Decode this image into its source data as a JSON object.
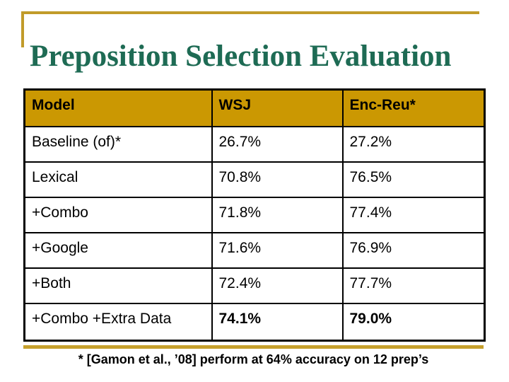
{
  "slide": {
    "title": "Preposition Selection Evaluation",
    "footnote": "* [Gamon et al., ’08] perform at 64% accuracy on 12 prep’s"
  },
  "colors": {
    "accent_gold_header": "#CB9802",
    "accent_gold_lines": "#C19B2A",
    "title_green": "#1E6B54",
    "table_border": "#000000",
    "body_text": "#000000",
    "background": "#FFFFFF"
  },
  "chart_data": {
    "type": "table",
    "title": "Preposition Selection Evaluation",
    "columns": [
      "Model",
      "WSJ",
      "Enc-Reu*"
    ],
    "rows": [
      [
        "Baseline (of)*",
        "26.7%",
        "27.2%"
      ],
      [
        "Lexical",
        "70.8%",
        "76.5%"
      ],
      [
        "+Combo",
        "71.8%",
        "77.4%"
      ],
      [
        "+Google",
        "71.6%",
        "76.9%"
      ],
      [
        "+Both",
        "72.4%",
        "77.7%"
      ],
      [
        "+Combo +Extra Data",
        "74.1%",
        "79.0%"
      ]
    ],
    "emphasized_row_index": 5,
    "emphasized_cells_bold": [
      "74.1%",
      "79.0%"
    ],
    "footnote": "* [Gamon et al., ’08] perform at 64% accuracy on 12 prep’s"
  }
}
